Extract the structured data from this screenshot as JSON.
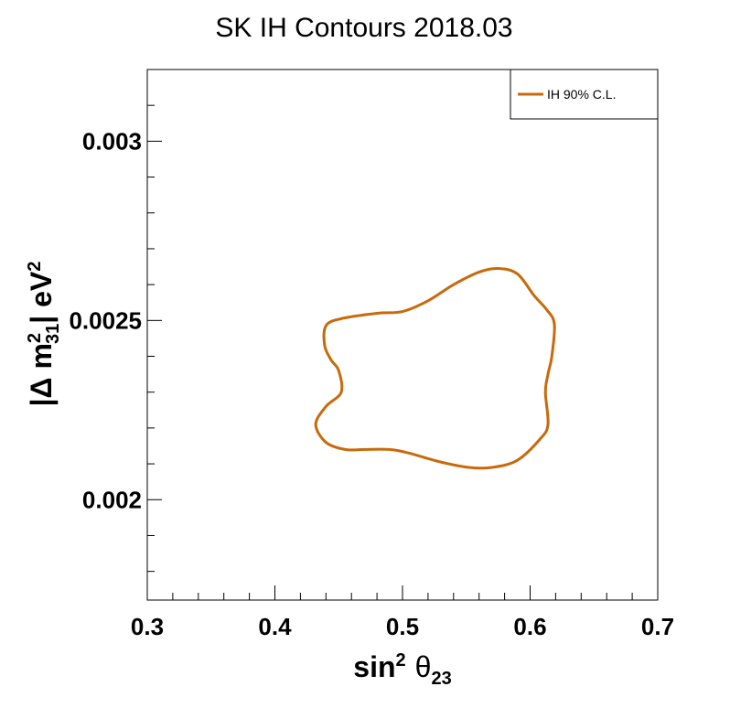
{
  "chart_data": {
    "type": "line",
    "title": "SK IH Contours  2018.03",
    "xlabel": {
      "base": "sin",
      "sup": "2",
      "theta": "θ",
      "sub": "23"
    },
    "ylabel": {
      "pre": "|Δ m",
      "sup": "2",
      "sub": "31",
      "mid": "| eV",
      "sup2": "2"
    },
    "xlim": [
      0.3,
      0.7
    ],
    "ylim": [
      0.00172,
      0.0032
    ],
    "x_ticks": [
      {
        "value": 0.3,
        "label": "0.3"
      },
      {
        "value": 0.4,
        "label": "0.4"
      },
      {
        "value": 0.5,
        "label": "0.5"
      },
      {
        "value": 0.6,
        "label": "0.6"
      },
      {
        "value": 0.7,
        "label": "0.7"
      }
    ],
    "y_ticks": [
      {
        "value": 0.002,
        "label": "0.002"
      },
      {
        "value": 0.0025,
        "label": "0.0025"
      },
      {
        "value": 0.003,
        "label": "0.003"
      }
    ],
    "grid": false,
    "legend_position": "top-right",
    "series": [
      {
        "name": "IH 90% C.L.",
        "color": "#c86a0c",
        "x": [
          0.44,
          0.452,
          0.48,
          0.5,
          0.52,
          0.54,
          0.56,
          0.575,
          0.59,
          0.603,
          0.613,
          0.619,
          0.617,
          0.614,
          0.612,
          0.614,
          0.608,
          0.59,
          0.57,
          0.552,
          0.53,
          0.505,
          0.49,
          0.47,
          0.455,
          0.44,
          0.432,
          0.44,
          0.452,
          0.45,
          0.444,
          0.439,
          0.44
        ],
        "y": [
          0.002485,
          0.002505,
          0.00252,
          0.002525,
          0.002555,
          0.0026,
          0.002635,
          0.002645,
          0.00263,
          0.00257,
          0.00253,
          0.00249,
          0.0024,
          0.00235,
          0.0023,
          0.00221,
          0.00217,
          0.00211,
          0.00209,
          0.00209,
          0.002105,
          0.00213,
          0.00214,
          0.00214,
          0.00214,
          0.00216,
          0.00221,
          0.00226,
          0.0023,
          0.00236,
          0.00239,
          0.00243,
          0.002485
        ]
      }
    ]
  }
}
